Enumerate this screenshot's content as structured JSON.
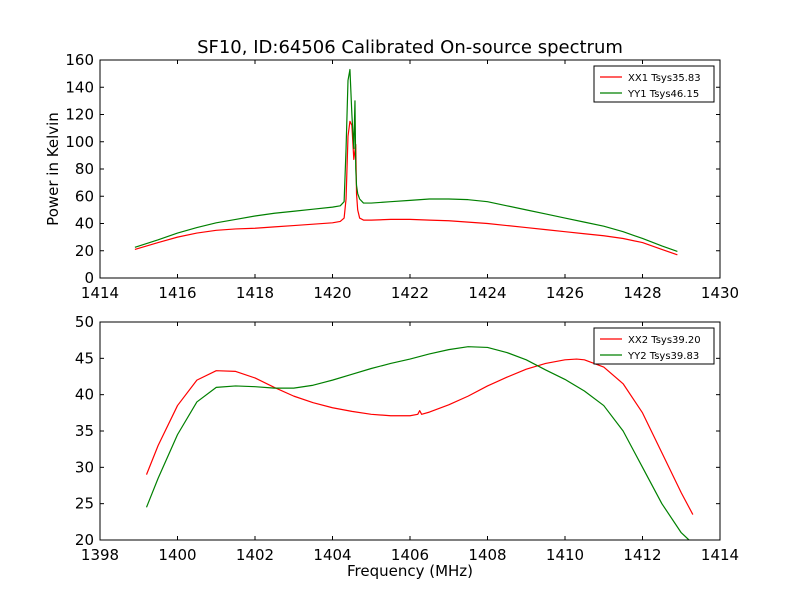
{
  "figure": {
    "title": "SF10, ID:64506 Calibrated On-source spectrum",
    "xlabel": "Frequency (MHz)"
  },
  "chart_data": [
    {
      "type": "line",
      "title": "SF10, ID:64506 Calibrated On-source spectrum",
      "xlabel": "",
      "ylabel": "Power in Kelvin",
      "xlim": [
        1414,
        1430
      ],
      "ylim": [
        0,
        160
      ],
      "xticks": [
        1414,
        1416,
        1418,
        1420,
        1422,
        1424,
        1426,
        1428,
        1430
      ],
      "yticks": [
        0,
        20,
        40,
        60,
        80,
        100,
        120,
        140,
        160
      ],
      "grid": false,
      "legend_position": "top-right",
      "series": [
        {
          "name": "XX1 Tsys35.83",
          "color": "#ff0000",
          "x": [
            1414.9,
            1415.5,
            1416,
            1416.5,
            1417,
            1417.5,
            1418,
            1418.5,
            1419,
            1419.5,
            1420,
            1420.2,
            1420.3,
            1420.35,
            1420.4,
            1420.45,
            1420.5,
            1420.55,
            1420.6,
            1420.62,
            1420.65,
            1420.7,
            1420.8,
            1421,
            1421.5,
            1422,
            1422.5,
            1423,
            1423.5,
            1424,
            1424.5,
            1425,
            1425.5,
            1426,
            1426.5,
            1427,
            1427.5,
            1428,
            1428.5,
            1428.9
          ],
          "y": [
            21,
            26,
            30,
            33,
            35,
            36,
            36.5,
            37.5,
            38.5,
            39.5,
            40.5,
            41.5,
            44,
            58,
            104,
            115,
            112,
            87,
            98,
            62,
            50,
            44,
            42.5,
            42.5,
            43,
            43,
            42.5,
            42,
            41,
            40,
            38.5,
            37,
            35.5,
            34,
            32.5,
            31,
            29,
            26,
            21,
            17
          ]
        },
        {
          "name": "YY1 Tsys46.15",
          "color": "#008000",
          "x": [
            1414.9,
            1415.5,
            1416,
            1416.5,
            1417,
            1417.5,
            1418,
            1418.5,
            1419,
            1419.5,
            1420,
            1420.2,
            1420.3,
            1420.35,
            1420.4,
            1420.45,
            1420.5,
            1420.55,
            1420.58,
            1420.6,
            1420.62,
            1420.65,
            1420.7,
            1420.8,
            1421,
            1421.5,
            1422,
            1422.5,
            1423,
            1423.5,
            1424,
            1424.5,
            1425,
            1425.5,
            1426,
            1426.5,
            1427,
            1427.5,
            1428,
            1428.5,
            1428.9
          ],
          "y": [
            22.5,
            28,
            33,
            37,
            40.5,
            43,
            45.5,
            47.5,
            49,
            50.5,
            52,
            53,
            56,
            95,
            145,
            153,
            120,
            95,
            130,
            80,
            68,
            62,
            58,
            55,
            55,
            56,
            57,
            58,
            58,
            57.5,
            56,
            53,
            50,
            47,
            44,
            41,
            38,
            34,
            29,
            23.5,
            19.5
          ]
        }
      ]
    },
    {
      "type": "line",
      "xlabel": "Frequency (MHz)",
      "ylabel": "",
      "xlim": [
        1398,
        1414
      ],
      "ylim": [
        20,
        50
      ],
      "xticks": [
        1398,
        1400,
        1402,
        1404,
        1406,
        1408,
        1410,
        1412,
        1414
      ],
      "yticks": [
        20,
        25,
        30,
        35,
        40,
        45,
        50
      ],
      "grid": false,
      "legend_position": "top-right",
      "series": [
        {
          "name": "XX2 Tsys39.20",
          "color": "#ff0000",
          "x": [
            1399.2,
            1399.5,
            1400,
            1400.5,
            1401,
            1401.5,
            1402,
            1402.5,
            1403,
            1403.5,
            1404,
            1404.5,
            1405,
            1405.5,
            1406,
            1406.2,
            1406.25,
            1406.3,
            1406.5,
            1407,
            1407.5,
            1408,
            1408.5,
            1409,
            1409.5,
            1410,
            1410.3,
            1410.5,
            1411,
            1411.5,
            1412,
            1412.5,
            1413,
            1413.3
          ],
          "y": [
            29,
            33,
            38.5,
            42,
            43.3,
            43.2,
            42.3,
            41,
            39.8,
            38.9,
            38.2,
            37.7,
            37.3,
            37.1,
            37.1,
            37.3,
            37.8,
            37.3,
            37.6,
            38.6,
            39.8,
            41.2,
            42.4,
            43.5,
            44.3,
            44.8,
            44.9,
            44.8,
            43.8,
            41.5,
            37.5,
            32,
            26.5,
            23.5
          ]
        },
        {
          "name": "YY2 Tsys39.83",
          "color": "#008000",
          "x": [
            1399.2,
            1399.5,
            1400,
            1400.5,
            1401,
            1401.5,
            1402,
            1402.5,
            1403,
            1403.5,
            1404,
            1404.5,
            1405,
            1405.5,
            1406,
            1406.5,
            1407,
            1407.5,
            1408,
            1408.5,
            1409,
            1409.5,
            1410,
            1410.5,
            1411,
            1411.5,
            1412,
            1412.5,
            1413,
            1413.2
          ],
          "y": [
            24.5,
            28.5,
            34.5,
            39,
            41,
            41.2,
            41.1,
            40.9,
            40.9,
            41.3,
            42,
            42.8,
            43.6,
            44.3,
            44.9,
            45.6,
            46.2,
            46.6,
            46.5,
            45.8,
            44.8,
            43.4,
            42.1,
            40.5,
            38.5,
            35,
            30,
            25,
            21,
            20
          ]
        }
      ]
    }
  ]
}
